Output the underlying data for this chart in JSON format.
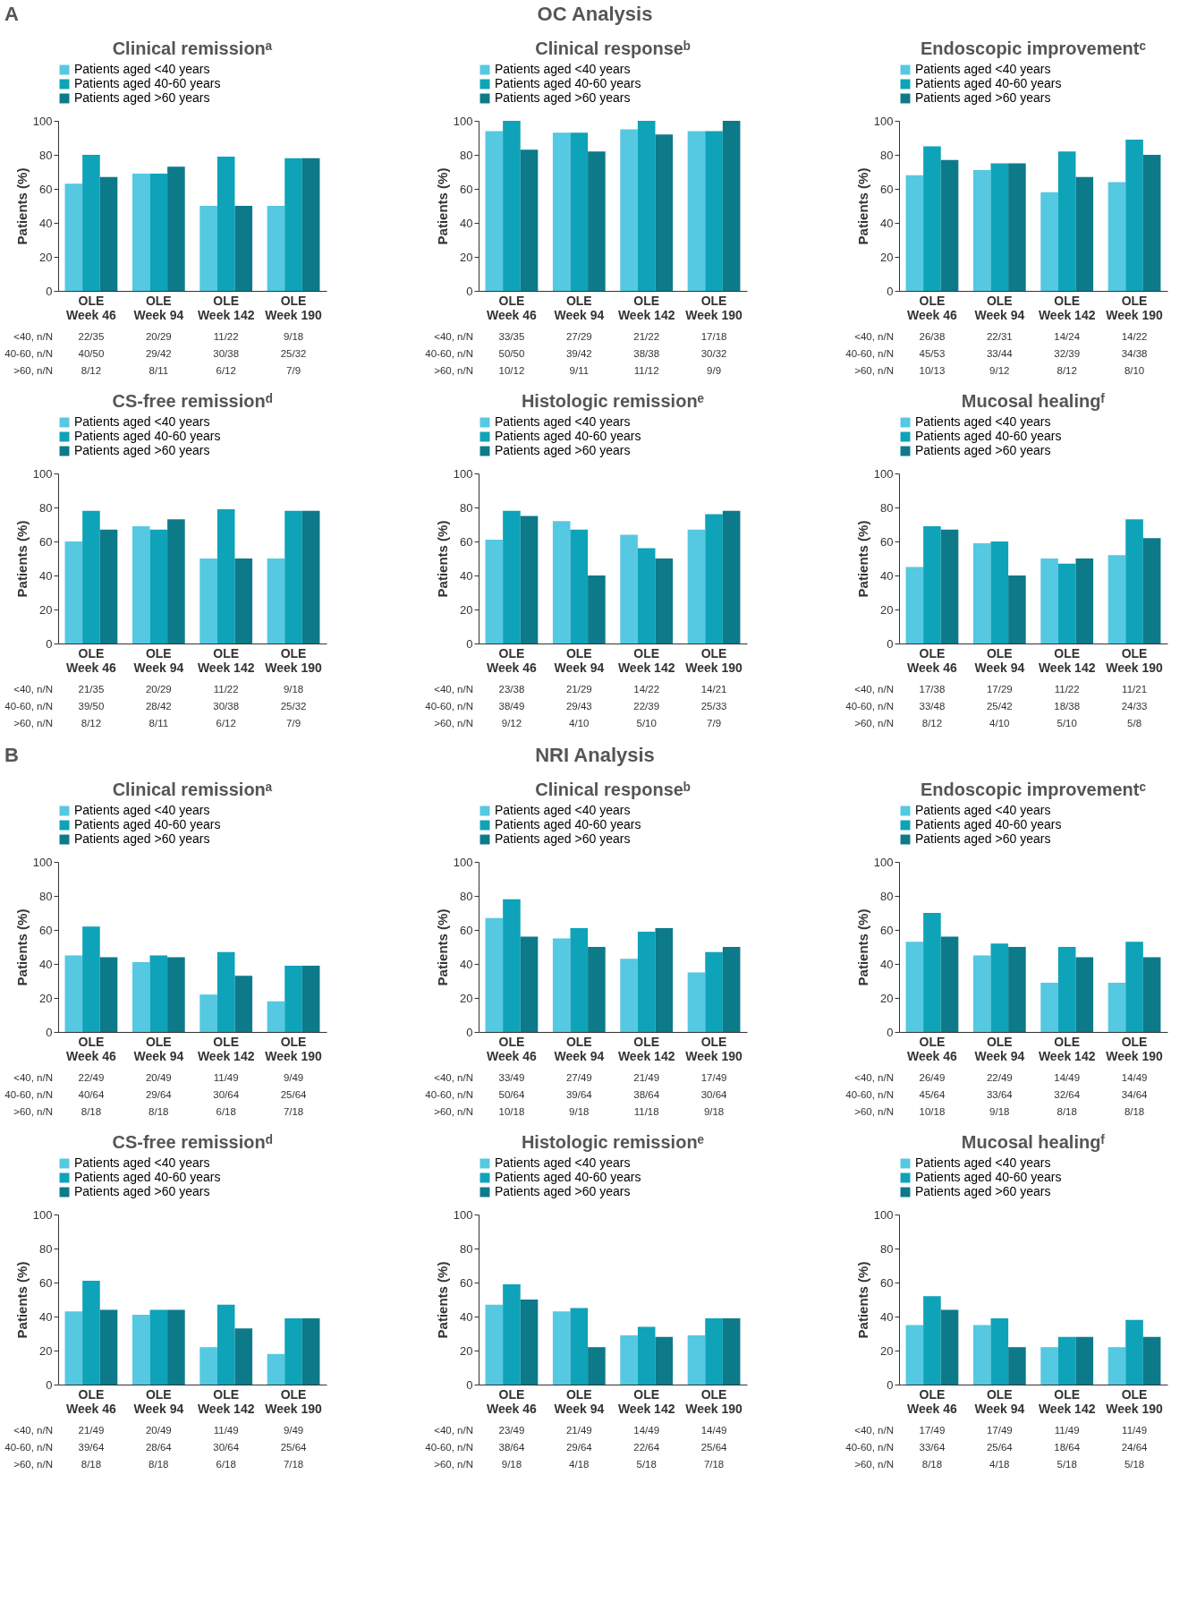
{
  "chart_data": [
    {
      "type": "bar",
      "title": "Clinical remissionᵃ",
      "ylabel": "Patients (%)",
      "categories": [
        "OLE\nWeek 46",
        "OLE\nWeek 94",
        "OLE\nWeek 142",
        "OLE\nWeek 190"
      ],
      "ylim": [
        0,
        100
      ],
      "yticks": [
        0,
        20,
        40,
        60,
        80,
        100
      ],
      "legend": "top",
      "annotations": [
        "A",
        "OC Analysis",
        "<40, n/N",
        "22/35",
        "20/29",
        "11/22",
        "9/18",
        "40-60, n/N",
        "40/50",
        "29/42",
        "30/38",
        "25/32",
        ">60, n/N",
        "8/12",
        "8/11",
        "6/12",
        "7/9"
      ],
      "series": [
        {
          "name": "Patients aged <40 years",
          "color": "#55c8e2",
          "values": [
            63,
            69,
            50,
            50
          ]
        },
        {
          "name": "Patients aged 40-60 years",
          "color": "#0ea3b8",
          "values": [
            80,
            69,
            79,
            78
          ]
        },
        {
          "name": "Patients aged >60 years",
          "color": "#0d7a8a",
          "values": [
            67,
            73,
            50,
            78
          ]
        }
      ]
    },
    {
      "type": "bar",
      "title": "Clinical responseᵇ",
      "ylabel": "Patients (%)",
      "categories": [
        "OLE\nWeek 46",
        "OLE\nWeek 94",
        "OLE\nWeek 142",
        "OLE\nWeek 190"
      ],
      "ylim": [
        0,
        100
      ],
      "yticks": [
        0,
        20,
        40,
        60,
        80,
        100
      ],
      "legend": "top",
      "annotations": [
        "<40, n/N",
        "33/35",
        "27/29",
        "21/22",
        "17/18",
        "40-60, n/N",
        "50/50",
        "39/42",
        "38/38",
        "30/32",
        ">60, n/N",
        "10/12",
        "9/11",
        "11/12",
        "9/9"
      ],
      "series": [
        {
          "name": "Patients aged <40 years",
          "color": "#55c8e2",
          "values": [
            94,
            93,
            95,
            94
          ]
        },
        {
          "name": "Patients aged 40-60 years",
          "color": "#0ea3b8",
          "values": [
            100,
            93,
            100,
            94
          ]
        },
        {
          "name": "Patients aged >60 years",
          "color": "#0d7a8a",
          "values": [
            83,
            82,
            92,
            100
          ]
        }
      ]
    },
    {
      "type": "bar",
      "title": "Endoscopic improvementᶜ",
      "ylabel": "Patients (%)",
      "categories": [
        "OLE\nWeek 46",
        "OLE\nWeek 94",
        "OLE\nWeek 142",
        "OLE\nWeek 190"
      ],
      "ylim": [
        0,
        100
      ],
      "yticks": [
        0,
        20,
        40,
        60,
        80,
        100
      ],
      "legend": "top",
      "annotations": [
        "<40, n/N",
        "26/38",
        "22/31",
        "14/24",
        "14/22",
        "40-60, n/N",
        "45/53",
        "33/44",
        "32/39",
        "34/38",
        ">60, n/N",
        "10/13",
        "9/12",
        "8/12",
        "8/10"
      ],
      "series": [
        {
          "name": "Patients aged <40 years",
          "color": "#55c8e2",
          "values": [
            68,
            71,
            58,
            64
          ]
        },
        {
          "name": "Patients aged 40-60 years",
          "color": "#0ea3b8",
          "values": [
            85,
            75,
            82,
            89
          ]
        },
        {
          "name": "Patients aged >60 years",
          "color": "#0d7a8a",
          "values": [
            77,
            75,
            67,
            80
          ]
        }
      ]
    },
    {
      "type": "bar",
      "title": "CS-free remissionᵈ",
      "ylabel": "Patients (%)",
      "categories": [
        "OLE\nWeek 46",
        "OLE\nWeek 94",
        "OLE\nWeek 142",
        "OLE\nWeek 190"
      ],
      "ylim": [
        0,
        100
      ],
      "yticks": [
        0,
        20,
        40,
        60,
        80,
        100
      ],
      "legend": "top",
      "annotations": [
        "<40, n/N",
        "21/35",
        "20/29",
        "11/22",
        "9/18",
        "40-60, n/N",
        "39/50",
        "28/42",
        "30/38",
        "25/32",
        ">60, n/N",
        "8/12",
        "8/11",
        "6/12",
        "7/9"
      ],
      "series": [
        {
          "name": "Patients aged <40 years",
          "color": "#55c8e2",
          "values": [
            60,
            69,
            50,
            50
          ]
        },
        {
          "name": "Patients aged 40-60 years",
          "color": "#0ea3b8",
          "values": [
            78,
            67,
            79,
            78
          ]
        },
        {
          "name": "Patients aged >60 years",
          "color": "#0d7a8a",
          "values": [
            67,
            73,
            50,
            78
          ]
        }
      ]
    },
    {
      "type": "bar",
      "title": "Histologic remissionᵉ",
      "ylabel": "Patients (%)",
      "categories": [
        "OLE\nWeek 46",
        "OLE\nWeek 94",
        "OLE\nWeek 142",
        "OLE\nWeek 190"
      ],
      "ylim": [
        0,
        100
      ],
      "yticks": [
        0,
        20,
        40,
        60,
        80,
        100
      ],
      "legend": "top",
      "annotations": [
        "<40, n/N",
        "23/38",
        "21/29",
        "14/22",
        "14/21",
        "40-60, n/N",
        "38/49",
        "29/43",
        "22/39",
        "25/33",
        ">60, n/N",
        "9/12",
        "4/10",
        "5/10",
        "7/9"
      ],
      "series": [
        {
          "name": "Patients aged <40 years",
          "color": "#55c8e2",
          "values": [
            61,
            72,
            64,
            67
          ]
        },
        {
          "name": "Patients aged 40-60 years",
          "color": "#0ea3b8",
          "values": [
            78,
            67,
            56,
            76
          ]
        },
        {
          "name": "Patients aged >60 years",
          "color": "#0d7a8a",
          "values": [
            75,
            40,
            50,
            78
          ]
        }
      ]
    },
    {
      "type": "bar",
      "title": "Mucosal healingᶠ",
      "ylabel": "Patients (%)",
      "categories": [
        "OLE\nWeek 46",
        "OLE\nWeek 94",
        "OLE\nWeek 142",
        "OLE\nWeek 190"
      ],
      "ylim": [
        0,
        100
      ],
      "yticks": [
        0,
        20,
        40,
        60,
        80,
        100
      ],
      "legend": "top",
      "annotations": [
        "<40, n/N",
        "17/38",
        "17/29",
        "11/22",
        "11/21",
        "40-60, n/N",
        "33/48",
        "25/42",
        "18/38",
        "24/33",
        ">60, n/N",
        "8/12",
        "4/10",
        "5/10",
        "5/8"
      ],
      "series": [
        {
          "name": "Patients aged <40 years",
          "color": "#55c8e2",
          "values": [
            45,
            59,
            50,
            52
          ]
        },
        {
          "name": "Patients aged 40-60 years",
          "color": "#0ea3b8",
          "values": [
            69,
            60,
            47,
            73
          ]
        },
        {
          "name": "Patients aged >60 years",
          "color": "#0d7a8a",
          "values": [
            67,
            40,
            50,
            62
          ]
        }
      ]
    },
    {
      "type": "bar",
      "title": "Clinical remissionᵃ",
      "ylabel": "Patients (%)",
      "categories": [
        "OLE\nWeek 46",
        "OLE\nWeek 94",
        "OLE\nWeek 142",
        "OLE\nWeek 190"
      ],
      "ylim": [
        0,
        100
      ],
      "yticks": [
        0,
        20,
        40,
        60,
        80,
        100
      ],
      "legend": "top",
      "annotations": [
        "B",
        "NRI Analysis",
        "<40, n/N",
        "22/49",
        "20/49",
        "11/49",
        "9/49",
        "40-60, n/N",
        "40/64",
        "29/64",
        "30/64",
        "25/64",
        ">60, n/N",
        "8/18",
        "8/18",
        "6/18",
        "7/18"
      ],
      "series": [
        {
          "name": "Patients aged <40 years",
          "color": "#55c8e2",
          "values": [
            45,
            41,
            22,
            18
          ]
        },
        {
          "name": "Patients aged 40-60 years",
          "color": "#0ea3b8",
          "values": [
            62,
            45,
            47,
            39
          ]
        },
        {
          "name": "Patients aged >60 years",
          "color": "#0d7a8a",
          "values": [
            44,
            44,
            33,
            39
          ]
        }
      ]
    },
    {
      "type": "bar",
      "title": "Clinical responseᵇ",
      "ylabel": "Patients (%)",
      "categories": [
        "OLE\nWeek 46",
        "OLE\nWeek 94",
        "OLE\nWeek 142",
        "OLE\nWeek 190"
      ],
      "ylim": [
        0,
        100
      ],
      "yticks": [
        0,
        20,
        40,
        60,
        80,
        100
      ],
      "legend": "top",
      "annotations": [
        "<40, n/N",
        "33/49",
        "27/49",
        "21/49",
        "17/49",
        "40-60, n/N",
        "50/64",
        "39/64",
        "38/64",
        "30/64",
        ">60, n/N",
        "10/18",
        "9/18",
        "11/18",
        "9/18"
      ],
      "series": [
        {
          "name": "Patients aged <40 years",
          "color": "#55c8e2",
          "values": [
            67,
            55,
            43,
            35
          ]
        },
        {
          "name": "Patients aged 40-60 years",
          "color": "#0ea3b8",
          "values": [
            78,
            61,
            59,
            47
          ]
        },
        {
          "name": "Patients aged >60 years",
          "color": "#0d7a8a",
          "values": [
            56,
            50,
            61,
            50
          ]
        }
      ]
    },
    {
      "type": "bar",
      "title": "Endoscopic improvementᶜ",
      "ylabel": "Patients (%)",
      "categories": [
        "OLE\nWeek 46",
        "OLE\nWeek 94",
        "OLE\nWeek 142",
        "OLE\nWeek 190"
      ],
      "ylim": [
        0,
        100
      ],
      "yticks": [
        0,
        20,
        40,
        60,
        80,
        100
      ],
      "legend": "top",
      "annotations": [
        "<40, n/N",
        "26/49",
        "22/49",
        "14/49",
        "14/49",
        "40-60, n/N",
        "45/64",
        "33/64",
        "32/64",
        "34/64",
        ">60, n/N",
        "10/18",
        "9/18",
        "8/18",
        "8/18"
      ],
      "series": [
        {
          "name": "Patients aged <40 years",
          "color": "#55c8e2",
          "values": [
            53,
            45,
            29,
            29
          ]
        },
        {
          "name": "Patients aged 40-60 years",
          "color": "#0ea3b8",
          "values": [
            70,
            52,
            50,
            53
          ]
        },
        {
          "name": "Patients aged >60 years",
          "color": "#0d7a8a",
          "values": [
            56,
            50,
            44,
            44
          ]
        }
      ]
    },
    {
      "type": "bar",
      "title": "CS-free remissionᵈ",
      "ylabel": "Patients (%)",
      "categories": [
        "OLE\nWeek 46",
        "OLE\nWeek 94",
        "OLE\nWeek 142",
        "OLE\nWeek 190"
      ],
      "ylim": [
        0,
        100
      ],
      "yticks": [
        0,
        20,
        40,
        60,
        80,
        100
      ],
      "legend": "top",
      "annotations": [
        "<40, n/N",
        "21/49",
        "20/49",
        "11/49",
        "9/49",
        "40-60, n/N",
        "39/64",
        "28/64",
        "30/64",
        "25/64",
        ">60, n/N",
        "8/18",
        "8/18",
        "6/18",
        "7/18"
      ],
      "series": [
        {
          "name": "Patients aged <40 years",
          "color": "#55c8e2",
          "values": [
            43,
            41,
            22,
            18
          ]
        },
        {
          "name": "Patients aged 40-60 years",
          "color": "#0ea3b8",
          "values": [
            61,
            44,
            47,
            39
          ]
        },
        {
          "name": "Patients aged >60 years",
          "color": "#0d7a8a",
          "values": [
            44,
            44,
            33,
            39
          ]
        }
      ]
    },
    {
      "type": "bar",
      "title": "Histologic remissionᵉ",
      "ylabel": "Patients (%)",
      "categories": [
        "OLE\nWeek 46",
        "OLE\nWeek 94",
        "OLE\nWeek 142",
        "OLE\nWeek 190"
      ],
      "ylim": [
        0,
        100
      ],
      "yticks": [
        0,
        20,
        40,
        60,
        80,
        100
      ],
      "legend": "top",
      "annotations": [
        "<40, n/N",
        "23/49",
        "21/49",
        "14/49",
        "14/49",
        "40-60, n/N",
        "38/64",
        "29/64",
        "22/64",
        "25/64",
        ">60, n/N",
        "9/18",
        "4/18",
        "5/18",
        "7/18"
      ],
      "series": [
        {
          "name": "Patients aged <40 years",
          "color": "#55c8e2",
          "values": [
            47,
            43,
            29,
            29
          ]
        },
        {
          "name": "Patients aged 40-60 years",
          "color": "#0ea3b8",
          "values": [
            59,
            45,
            34,
            39
          ]
        },
        {
          "name": "Patients aged >60 years",
          "color": "#0d7a8a",
          "values": [
            50,
            22,
            28,
            39
          ]
        }
      ]
    },
    {
      "type": "bar",
      "title": "Mucosal healingᶠ",
      "ylabel": "Patients (%)",
      "categories": [
        "OLE\nWeek 46",
        "OLE\nWeek 94",
        "OLE\nWeek 142",
        "OLE\nWeek 190"
      ],
      "ylim": [
        0,
        100
      ],
      "yticks": [
        0,
        20,
        40,
        60,
        80,
        100
      ],
      "legend": "top",
      "annotations": [
        "<40, n/N",
        "17/49",
        "17/49",
        "11/49",
        "11/49",
        "40-60, n/N",
        "33/64",
        "25/64",
        "18/64",
        "24/64",
        ">60, n/N",
        "8/18",
        "4/18",
        "5/18",
        "5/18"
      ],
      "series": [
        {
          "name": "Patients aged <40 years",
          "color": "#55c8e2",
          "values": [
            35,
            35,
            22,
            22
          ]
        },
        {
          "name": "Patients aged 40-60 years",
          "color": "#0ea3b8",
          "values": [
            52,
            39,
            28,
            38
          ]
        },
        {
          "name": "Patients aged >60 years",
          "color": "#0d7a8a",
          "values": [
            44,
            22,
            28,
            28
          ]
        }
      ]
    }
  ]
}
